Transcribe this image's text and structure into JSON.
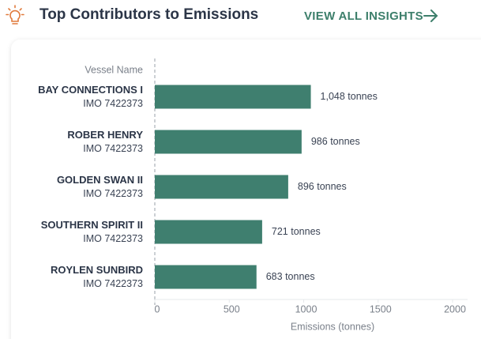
{
  "chart_data": {
    "type": "bar",
    "orientation": "horizontal",
    "title": "Top Contributors to Emissions",
    "link_text": "VIEW ALL INSIGHTS",
    "category_axis_label": "Vessel Name",
    "categories": [
      "BAY CONNECTIONS I",
      "ROBER HENRY",
      "GOLDEN SWAN II",
      "SOUTHERN SPIRIT II",
      "ROYLEN SUNBIRD"
    ],
    "category_subtitles": [
      "IMO 7422373",
      "IMO 7422373",
      "IMO 7422373",
      "IMO 7422373",
      "IMO 7422373"
    ],
    "values": [
      1048,
      986,
      896,
      721,
      683
    ],
    "value_labels": [
      "1,048 tonnes",
      "986 tonnes",
      "896 tonnes",
      "721 tonnes",
      "683 tonnes"
    ],
    "color": "#3f7f6f",
    "xlabel": "Emissions (tonnes)",
    "xlim": [
      0,
      2000
    ],
    "xticks": [
      0,
      500,
      1000,
      1500,
      2000
    ]
  }
}
